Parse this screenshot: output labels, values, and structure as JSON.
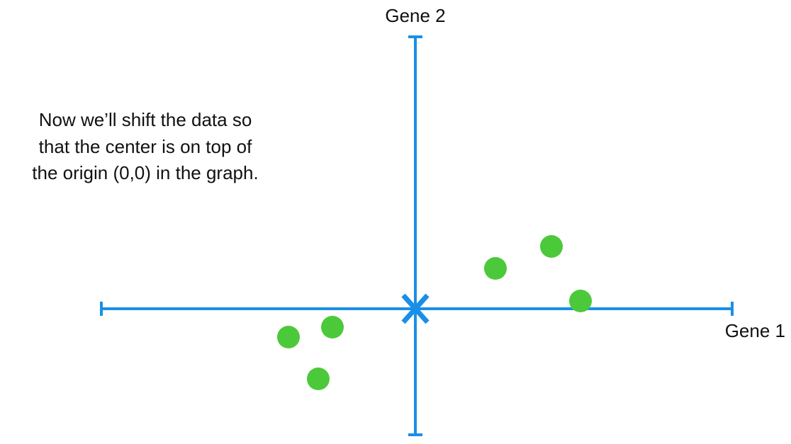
{
  "axes": {
    "y_label": "Gene 2",
    "x_label": "Gene 1"
  },
  "note": {
    "lines": [
      "Now we’ll shift the data so",
      "that the center is on top of",
      "the origin (0,0) in the graph."
    ]
  }
}
